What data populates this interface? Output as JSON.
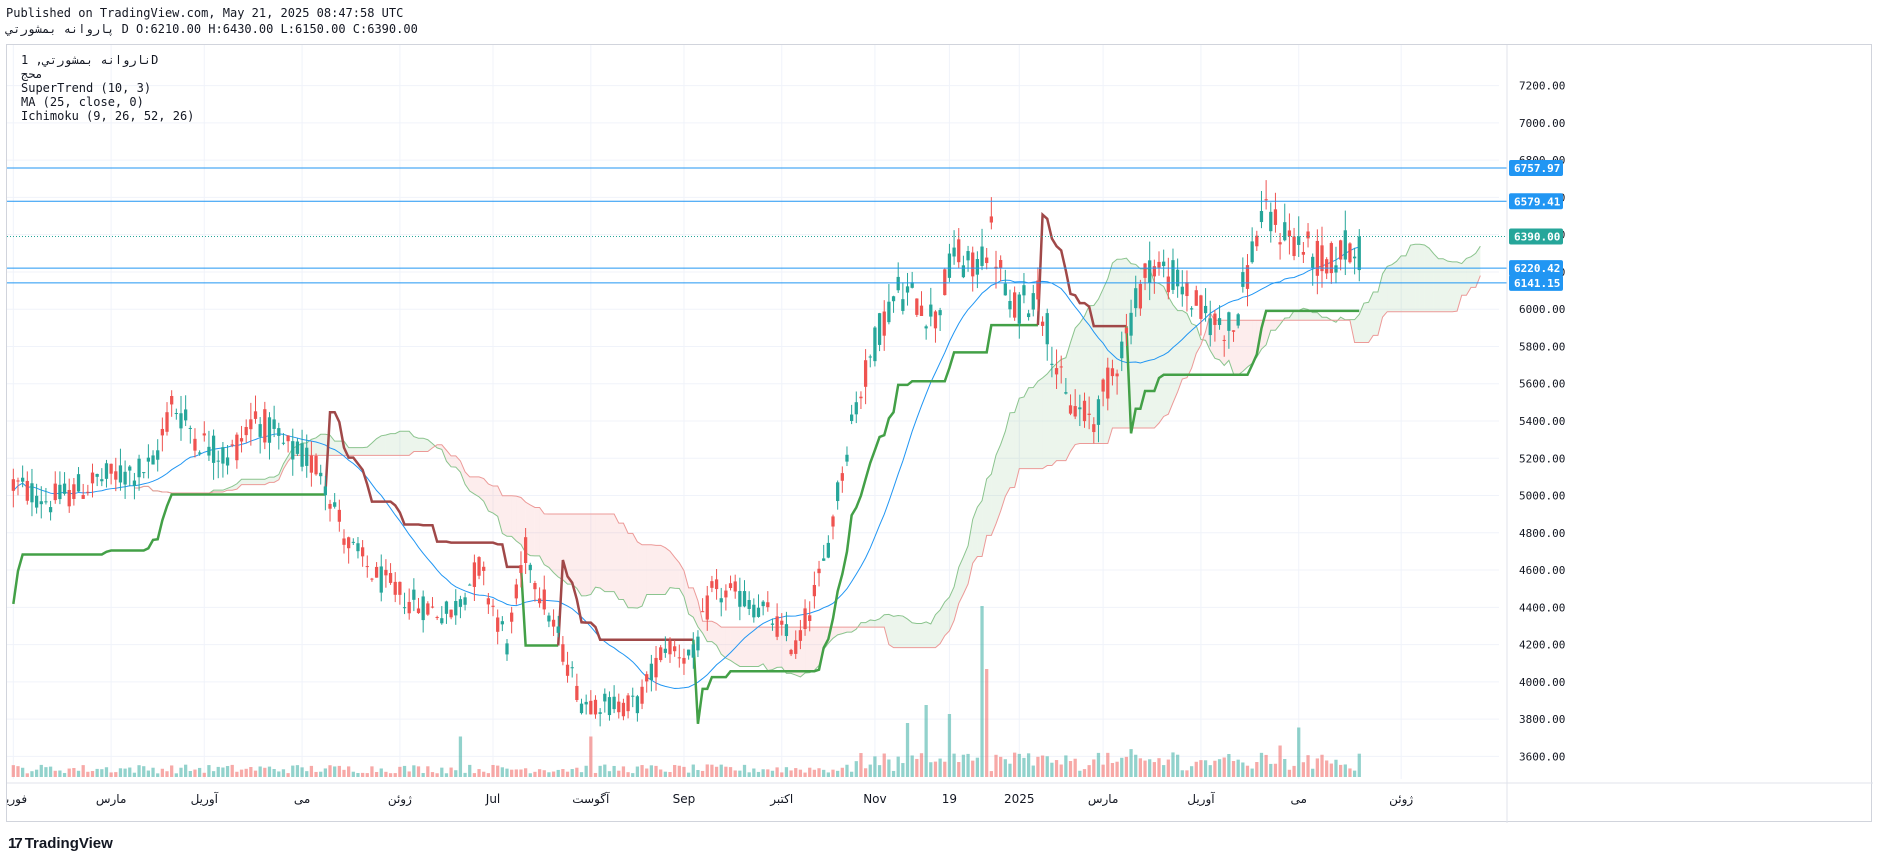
{
  "header": {
    "line1": "Published on TradingView.com, May 21, 2025 08:47:58 UTC",
    "line2": "پاروانه بمشورتي D O:6210.00 H:6430.00 L:6150.00 C:6390.00"
  },
  "legend": {
    "symbol": "ناروانه بمشورتي, 1D",
    "exchange": "محج",
    "supertrend": "SuperTrend (10, 3)",
    "ma": "MA (25, close, 0)",
    "ichimoku": "Ichimoku (9, 26, 52, 26)"
  },
  "footer": {
    "brand": "TradingView"
  },
  "colors": {
    "up": "#26a69a",
    "down": "#ef5350",
    "supertrend_up": "#43a047",
    "supertrend_down": "#a04848",
    "ma": "#2196f3",
    "hline": "#2196f3",
    "cloud_bull": "rgba(67,160,71,0.10)",
    "cloud_bear": "rgba(239,83,80,0.10)",
    "price_tag": "#2196f3",
    "close_tag": "#26a69a"
  },
  "chart_data": {
    "type": "candlestick",
    "y_ticks": [
      "3600.00",
      "3800.00",
      "4000.00",
      "4200.00",
      "4400.00",
      "4600.00",
      "4800.00",
      "5000.00",
      "5200.00",
      "5400.00",
      "5600.00",
      "5800.00",
      "6000.00",
      "6200.00",
      "6400.00",
      "6600.00",
      "6800.00",
      "7000.00",
      "7200.00"
    ],
    "ylim": [
      3500,
      7300
    ],
    "x_labels": [
      "فوریه",
      "مارس",
      "آوریل",
      "می",
      "ژوئن",
      "Jul",
      "آگوست",
      "Sep",
      "اکتبر",
      "Nov",
      "19",
      "2025",
      "مارس",
      "آوریل",
      "می",
      "ژوئن"
    ],
    "x_label_pos": [
      0,
      21,
      41,
      62,
      83,
      103,
      124,
      144,
      165,
      185,
      201,
      216,
      234,
      255,
      276,
      298
    ],
    "n_bars": 290,
    "lookahead_bars": 28,
    "horizontal_lines": [
      {
        "value": 6757.97,
        "label": "6757.97"
      },
      {
        "value": 6579.41,
        "label": "6579.41"
      },
      {
        "value": 6220.42,
        "label": "6220.42"
      },
      {
        "value": 6141.15,
        "label": "6141.15"
      }
    ],
    "last_close": {
      "value": 6390.0,
      "label": "6390.00"
    },
    "last_bar": {
      "open": 6210,
      "high": 6430,
      "low": 6150,
      "close": 6390
    },
    "price_anchors": [
      [
        0,
        5060
      ],
      [
        8,
        4970
      ],
      [
        18,
        5080
      ],
      [
        30,
        5150
      ],
      [
        34,
        5500
      ],
      [
        40,
        5300
      ],
      [
        46,
        5200
      ],
      [
        52,
        5430
      ],
      [
        58,
        5260
      ],
      [
        66,
        5150
      ],
      [
        72,
        4730
      ],
      [
        78,
        4560
      ],
      [
        86,
        4420
      ],
      [
        94,
        4360
      ],
      [
        100,
        4620
      ],
      [
        106,
        4200
      ],
      [
        110,
        4700
      ],
      [
        116,
        4300
      ],
      [
        122,
        3900
      ],
      [
        128,
        3880
      ],
      [
        134,
        3880
      ],
      [
        140,
        4200
      ],
      [
        146,
        4130
      ],
      [
        150,
        4480
      ],
      [
        156,
        4460
      ],
      [
        162,
        4360
      ],
      [
        168,
        4180
      ],
      [
        174,
        4620
      ],
      [
        180,
        5400
      ],
      [
        186,
        5900
      ],
      [
        190,
        6100
      ],
      [
        194,
        6050
      ],
      [
        198,
        5950
      ],
      [
        202,
        6300
      ],
      [
        206,
        6200
      ],
      [
        210,
        6400
      ],
      [
        214,
        5980
      ],
      [
        220,
        6100
      ],
      [
        226,
        5500
      ],
      [
        232,
        5400
      ],
      [
        238,
        5800
      ],
      [
        244,
        6250
      ],
      [
        250,
        6150
      ],
      [
        256,
        5950
      ],
      [
        262,
        5900
      ],
      [
        268,
        6500
      ],
      [
        274,
        6400
      ],
      [
        282,
        6230
      ],
      [
        289,
        6390
      ]
    ],
    "volume_spikes": [
      [
        208,
        1.9
      ],
      [
        209,
        1.2
      ],
      [
        196,
        0.8
      ],
      [
        192,
        0.6
      ],
      [
        201,
        0.7
      ],
      [
        96,
        0.45
      ],
      [
        124,
        0.45
      ],
      [
        276,
        0.55
      ],
      [
        272,
        0.35
      ]
    ]
  }
}
